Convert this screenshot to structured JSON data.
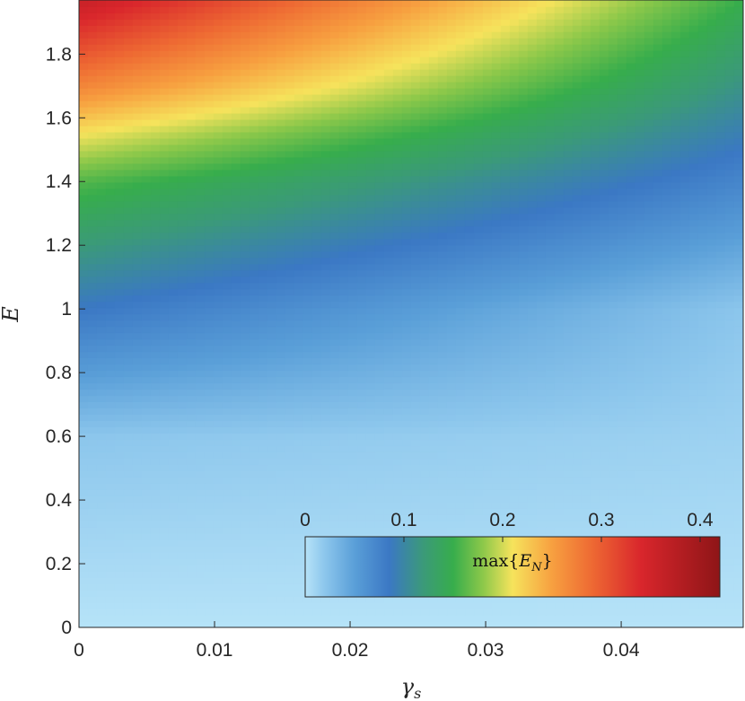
{
  "chart_data": {
    "type": "heatmap",
    "title": "",
    "xlabel": "γ",
    "xlabel_subscript": "s",
    "ylabel": "E",
    "xlim": [
      0,
      0.049
    ],
    "ylim": [
      0,
      1.97
    ],
    "xticks": [
      0,
      0.01,
      0.02,
      0.03,
      0.04
    ],
    "xtick_labels": [
      "0",
      "0.01",
      "0.02",
      "0.03",
      "0.04"
    ],
    "yticks": [
      0,
      0.2,
      0.4,
      0.6,
      0.8,
      1.0,
      1.2,
      1.4,
      1.6,
      1.8
    ],
    "ytick_labels": [
      "0",
      "0.2",
      "0.4",
      "0.6",
      "0.8",
      "1",
      "1.2",
      "1.4",
      "1.6",
      "1.8"
    ],
    "z_field_label": "max{E_N}",
    "colorbar": {
      "placement": "inside-bottom-right",
      "range": [
        0,
        0.42
      ],
      "ticks": [
        0,
        0.1,
        0.2,
        0.3,
        0.4
      ],
      "tick_labels": [
        "0",
        "0.1",
        "0.2",
        "0.3",
        "0.4"
      ],
      "label_prefix": "max{",
      "label_symbol": "E",
      "label_subscript": "N",
      "label_suffix": "}",
      "colormap": [
        {
          "v": 0.0,
          "color": "#b6e3f8"
        },
        {
          "v": 0.02,
          "color": "#8cc6ec"
        },
        {
          "v": 0.05,
          "color": "#5a9fd8"
        },
        {
          "v": 0.085,
          "color": "#3b78c4"
        },
        {
          "v": 0.12,
          "color": "#3b9a78"
        },
        {
          "v": 0.15,
          "color": "#37ad4c"
        },
        {
          "v": 0.18,
          "color": "#8cc84a"
        },
        {
          "v": 0.21,
          "color": "#f6e35c"
        },
        {
          "v": 0.25,
          "color": "#f7a040"
        },
        {
          "v": 0.29,
          "color": "#ee6a33"
        },
        {
          "v": 0.34,
          "color": "#d9262c"
        },
        {
          "v": 0.42,
          "color": "#8e1517"
        }
      ]
    },
    "samples_gamma0": [
      {
        "E": 0.0,
        "value": 0.0
      },
      {
        "E": 0.6,
        "value": 0.02
      },
      {
        "E": 1.0,
        "value": 0.085
      },
      {
        "E": 1.2,
        "value": 0.12
      },
      {
        "E": 1.4,
        "value": 0.16
      },
      {
        "E": 1.55,
        "value": 0.21
      },
      {
        "E": 1.7,
        "value": 0.27
      },
      {
        "E": 1.97,
        "value": 0.36
      }
    ],
    "samples_gamma_049": [
      {
        "E": 0.0,
        "value": 0.0
      },
      {
        "E": 1.0,
        "value": 0.02
      },
      {
        "E": 1.5,
        "value": 0.085
      },
      {
        "E": 1.97,
        "value": 0.15
      }
    ],
    "grid": false
  }
}
